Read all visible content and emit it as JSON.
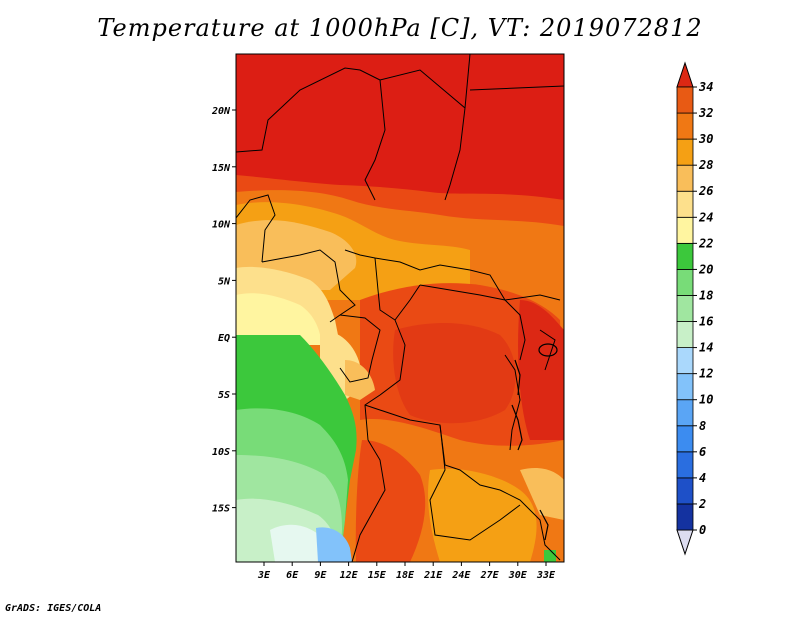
{
  "title": "Temperature at 1000hPa [C], VT: 2019072812",
  "credit": "GrADS: IGES/COLA",
  "map": {
    "lat_labels": [
      "20N",
      "15N",
      "10N",
      "5N",
      "EQ",
      "5S",
      "10S",
      "15S"
    ],
    "lon_labels": [
      "3E",
      "6E",
      "9E",
      "12E",
      "15E",
      "18E",
      "21E",
      "24E",
      "27E",
      "30E",
      "33E"
    ]
  },
  "colorbar": {
    "labels": [
      "0",
      "2",
      "4",
      "6",
      "8",
      "10",
      "12",
      "14",
      "16",
      "18",
      "20",
      "22",
      "24",
      "26",
      "28",
      "30",
      "32",
      "34"
    ],
    "colors": [
      "#0a0a6e",
      "#1432a0",
      "#1e50c8",
      "#2a6ee0",
      "#3c8cf0",
      "#5aa5f5",
      "#82c2fa",
      "#aad8fc",
      "#c8f0c8",
      "#a0e6a0",
      "#78dc78",
      "#3cc83c",
      "#fff5a0",
      "#fde08c",
      "#f9be5a",
      "#f5a014",
      "#f07814",
      "#e85a14",
      "#dc2814",
      "#c8141e"
    ],
    "low_color": "#dcdcf0",
    "high_color": "#dc2814"
  }
}
